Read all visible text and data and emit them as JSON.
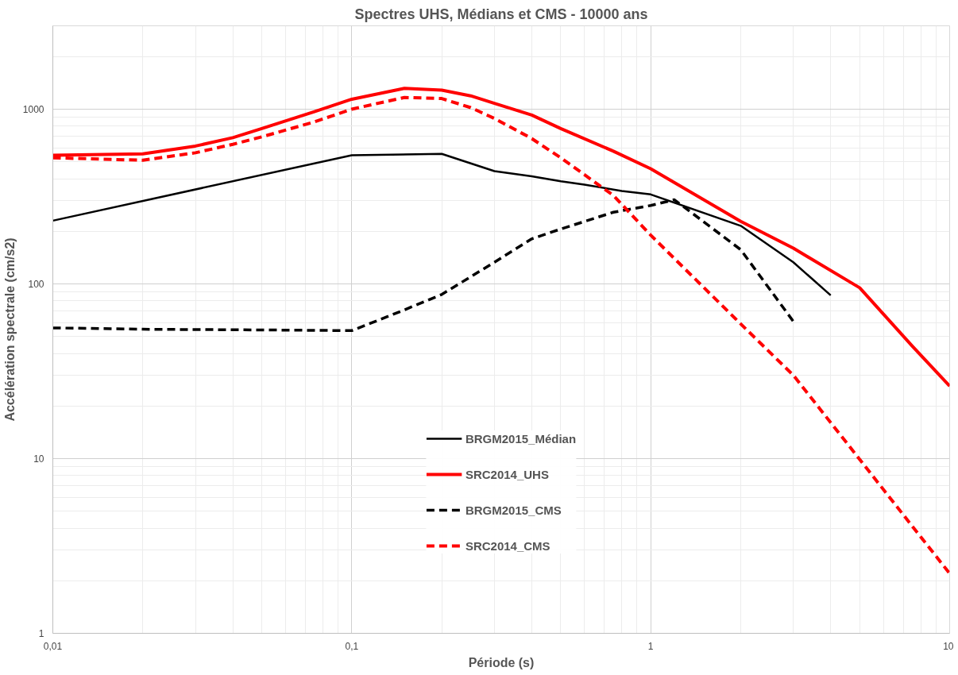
{
  "chart_data": {
    "type": "line",
    "title": "Spectres UHS, Médians et CMS - 10000 ans",
    "xlabel": "Période (s)",
    "ylabel": "Accélération spectrale (cm/s2)",
    "log": "xy",
    "xlim": [
      0.01,
      10
    ],
    "ylim": [
      1,
      3000
    ],
    "xticks": [
      {
        "value": 0.01,
        "label": "0,01"
      },
      {
        "value": 0.1,
        "label": "0,1"
      },
      1,
      10
    ],
    "yticks": [
      1,
      10,
      100,
      1000
    ],
    "grid": true,
    "legend": "bottom",
    "series": [
      {
        "name": "BRGM2015_Médian",
        "color": "#000000",
        "line_style": "solid",
        "x": [
          0.01,
          0.1,
          0.2,
          0.3,
          0.4,
          0.5,
          0.6,
          0.8,
          1,
          2,
          3,
          4
        ],
        "values": [
          230,
          545,
          555,
          442,
          413,
          387,
          370,
          340,
          325,
          215,
          133,
          86
        ]
      },
      {
        "name": "SRC2014_UHS",
        "color": "#ff0000",
        "line_style": "solid",
        "x": [
          0.01,
          0.02,
          0.03,
          0.04,
          0.05,
          0.075,
          0.1,
          0.15,
          0.2,
          0.25,
          0.3,
          0.4,
          0.5,
          0.75,
          1,
          2,
          3,
          5,
          7.5,
          10
        ],
        "values": [
          545,
          555,
          615,
          687,
          775,
          967,
          1140,
          1316,
          1285,
          1192,
          1080,
          925,
          775,
          575,
          456,
          228,
          160,
          95,
          44,
          26
        ]
      },
      {
        "name": "BRGM2015_CMS",
        "color": "#000000",
        "line_style": "dashed",
        "x": [
          0.01,
          0.02,
          0.05,
          0.1,
          0.15,
          0.2,
          0.3,
          0.4,
          0.5,
          0.75,
          1,
          1.2,
          2,
          3
        ],
        "values": [
          56,
          55,
          54.5,
          54,
          71,
          87,
          133,
          181,
          206,
          257,
          281,
          303,
          157,
          61
        ]
      },
      {
        "name": "SRC2014_CMS",
        "color": "#ff0000",
        "line_style": "dashed",
        "x": [
          0.01,
          0.02,
          0.03,
          0.04,
          0.05,
          0.075,
          0.1,
          0.15,
          0.2,
          0.25,
          0.3,
          0.4,
          0.5,
          0.75,
          1,
          2,
          3,
          5,
          7.5,
          10
        ],
        "values": [
          527,
          510,
          563,
          629,
          694,
          846,
          1000,
          1167,
          1150,
          1021,
          885,
          679,
          527,
          321,
          190,
          59,
          30,
          9.9,
          4.1,
          2.2
        ]
      }
    ]
  }
}
